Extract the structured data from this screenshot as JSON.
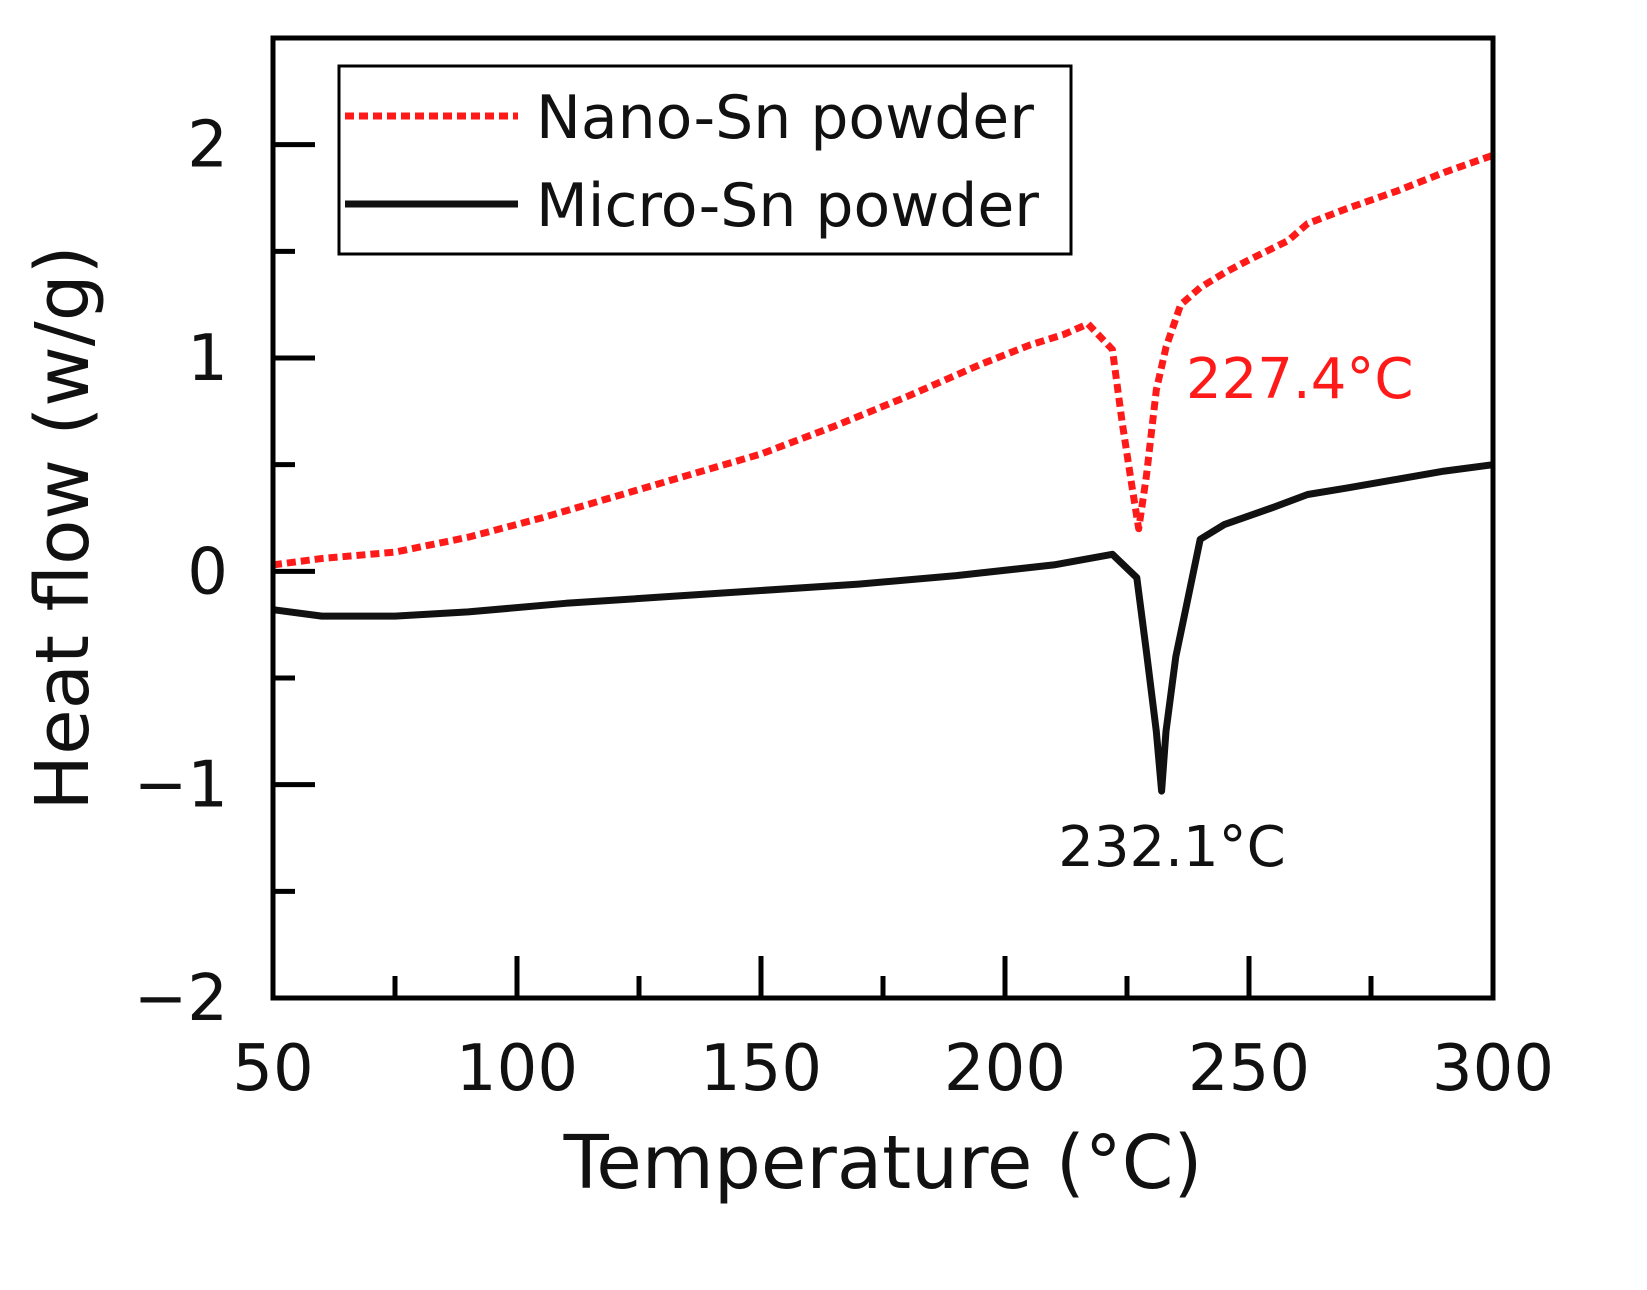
{
  "chart_data": {
    "type": "line",
    "xlabel": "Temperature (°C)",
    "ylabel": "Heat flow (w/g)",
    "xlim": [
      50,
      300
    ],
    "ylim": [
      -2,
      2.5
    ],
    "x_ticks": [
      50,
      100,
      150,
      200,
      250,
      300
    ],
    "x_tick_labels": [
      "50",
      "100",
      "150",
      "200",
      "250",
      "300"
    ],
    "x_minor_ticks": [
      75,
      125,
      175,
      225,
      275
    ],
    "y_ticks": [
      -2,
      -1,
      0,
      1,
      2
    ],
    "y_tick_labels": [
      "−2",
      "−1",
      "0",
      "1",
      "2"
    ],
    "y_minor_ticks": [
      -1.5,
      -0.5,
      0.5,
      1.5
    ],
    "grid": false,
    "legend_position": "top-left",
    "series": [
      {
        "name": "Nano-Sn powder",
        "color": "#ff1a1a",
        "style": "dotted",
        "x": [
          50,
          60,
          75,
          90,
          105,
          120,
          135,
          150,
          165,
          180,
          195,
          205,
          212,
          217,
          222,
          224,
          226,
          227.4,
          229,
          231,
          233,
          236,
          240,
          245,
          250,
          258,
          262,
          270,
          280,
          290,
          300
        ],
        "y": [
          0.03,
          0.06,
          0.09,
          0.16,
          0.25,
          0.35,
          0.45,
          0.55,
          0.68,
          0.82,
          0.97,
          1.06,
          1.11,
          1.16,
          1.04,
          0.7,
          0.4,
          0.2,
          0.45,
          0.85,
          1.05,
          1.25,
          1.33,
          1.4,
          1.46,
          1.55,
          1.63,
          1.7,
          1.78,
          1.87,
          1.95
        ]
      },
      {
        "name": "Micro-Sn powder",
        "color": "#111111",
        "style": "solid",
        "x": [
          50,
          60,
          75,
          90,
          110,
          130,
          150,
          170,
          190,
          210,
          222,
          227,
          229,
          231,
          232.1,
          233,
          235,
          237,
          240,
          245,
          255,
          262,
          270,
          280,
          290,
          300
        ],
        "y": [
          -0.18,
          -0.21,
          -0.21,
          -0.19,
          -0.15,
          -0.12,
          -0.09,
          -0.06,
          -0.02,
          0.03,
          0.08,
          -0.03,
          -0.38,
          -0.75,
          -1.03,
          -0.75,
          -0.4,
          -0.18,
          0.15,
          0.22,
          0.3,
          0.36,
          0.39,
          0.43,
          0.47,
          0.5
        ]
      }
    ],
    "annotations": [
      {
        "text": "227.4°C",
        "color": "#ff1a1a",
        "x": 227.4,
        "y": 0.2,
        "anchor": "right of peak"
      },
      {
        "text": "232.1°C",
        "color": "#111111",
        "x": 232.1,
        "y": -1.03,
        "anchor": "below peak"
      }
    ]
  }
}
